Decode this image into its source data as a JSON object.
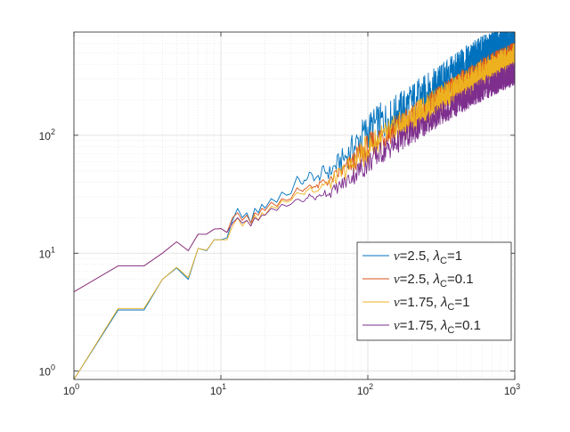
{
  "chart_data": {
    "type": "line",
    "title": "",
    "xlabel": "",
    "ylabel": "",
    "xscale": "log",
    "yscale": "log",
    "xlim": [
      1,
      1000
    ],
    "ylim": [
      0.85,
      750
    ],
    "grid": true,
    "legend_position": "lower-right",
    "x_ticks": [
      {
        "value": 1,
        "base": "10",
        "exp": "0"
      },
      {
        "value": 10,
        "base": "10",
        "exp": "1"
      },
      {
        "value": 100,
        "base": "10",
        "exp": "2"
      },
      {
        "value": 1000,
        "base": "10",
        "exp": "3"
      }
    ],
    "y_ticks": [
      {
        "value": 1,
        "base": "10",
        "exp": "0"
      },
      {
        "value": 10,
        "base": "10",
        "exp": "1"
      },
      {
        "value": 100,
        "base": "10",
        "exp": "2"
      }
    ],
    "legend": [
      {
        "nu": "2.5",
        "lambda": "1",
        "color": "#0072BD"
      },
      {
        "nu": "2.5",
        "lambda": "0.1",
        "color": "#D95319"
      },
      {
        "nu": "1.75",
        "lambda": "1",
        "color": "#EDB120"
      },
      {
        "nu": "1.75",
        "lambda": "0.1",
        "color": "#7E2F8E"
      }
    ],
    "legend_symbols": {
      "nu": "ν",
      "eq": "=",
      "sep": ", ",
      "lambda": "λ",
      "sub": "C"
    },
    "series": [
      {
        "color": "#0072BD",
        "points": [
          [
            1,
            0.85
          ],
          [
            2,
            3.3
          ],
          [
            3,
            3.3
          ],
          [
            4,
            6.0
          ],
          [
            5,
            7.5
          ],
          [
            6,
            6.0
          ],
          [
            7,
            11
          ],
          [
            8,
            10.5
          ],
          [
            9,
            13
          ],
          [
            10,
            13
          ],
          [
            11,
            13.5
          ],
          [
            12,
            19
          ],
          [
            13,
            24
          ],
          [
            14,
            20
          ],
          [
            15,
            22
          ],
          [
            16,
            18
          ],
          [
            17,
            24
          ],
          [
            18,
            22
          ],
          [
            19,
            26
          ],
          [
            20,
            24
          ],
          [
            22,
            29
          ],
          [
            24,
            27
          ],
          [
            26,
            33
          ],
          [
            28,
            31
          ],
          [
            30,
            32
          ],
          [
            33,
            45
          ],
          [
            36,
            38
          ],
          [
            40,
            47
          ],
          [
            45,
            42
          ],
          [
            50,
            50
          ],
          [
            55,
            48
          ],
          [
            60,
            55
          ],
          [
            70,
            65
          ],
          [
            80,
            78
          ],
          [
            90,
            95
          ],
          [
            100,
            110
          ],
          [
            120,
            130
          ],
          [
            140,
            135
          ],
          [
            160,
            160
          ],
          [
            180,
            175
          ],
          [
            200,
            195
          ],
          [
            250,
            230
          ],
          [
            300,
            270
          ],
          [
            350,
            310
          ],
          [
            400,
            350
          ],
          [
            500,
            420
          ],
          [
            600,
            480
          ],
          [
            700,
            530
          ],
          [
            800,
            590
          ],
          [
            900,
            630
          ],
          [
            1000,
            680
          ]
        ],
        "jitter": 0.16
      },
      {
        "color": "#D95319",
        "points": [
          [
            1,
            4.7
          ],
          [
            2,
            7.8
          ],
          [
            3,
            7.8
          ],
          [
            4,
            10
          ],
          [
            5,
            12.5
          ],
          [
            6,
            10.5
          ],
          [
            7,
            14.5
          ],
          [
            8,
            14.5
          ],
          [
            9,
            16
          ],
          [
            10,
            16.2
          ],
          [
            11,
            15
          ],
          [
            12,
            20
          ],
          [
            13,
            22
          ],
          [
            14,
            19
          ],
          [
            15,
            21
          ],
          [
            16,
            18
          ],
          [
            17,
            22
          ],
          [
            18,
            21
          ],
          [
            19,
            24
          ],
          [
            20,
            23
          ],
          [
            22,
            27
          ],
          [
            24,
            25
          ],
          [
            26,
            29
          ],
          [
            28,
            28
          ],
          [
            30,
            29
          ],
          [
            33,
            36
          ],
          [
            36,
            33
          ],
          [
            40,
            38
          ],
          [
            45,
            36
          ],
          [
            50,
            41
          ],
          [
            55,
            40
          ],
          [
            60,
            45
          ],
          [
            70,
            52
          ],
          [
            80,
            60
          ],
          [
            90,
            70
          ],
          [
            100,
            80
          ],
          [
            120,
            95
          ],
          [
            140,
            105
          ],
          [
            160,
            120
          ],
          [
            180,
            130
          ],
          [
            200,
            140
          ],
          [
            250,
            170
          ],
          [
            300,
            200
          ],
          [
            350,
            230
          ],
          [
            400,
            260
          ],
          [
            500,
            305
          ],
          [
            600,
            350
          ],
          [
            700,
            390
          ],
          [
            800,
            420
          ],
          [
            900,
            450
          ],
          [
            1000,
            480
          ]
        ],
        "jitter": 0.11
      },
      {
        "color": "#EDB120",
        "points": [
          [
            1,
            0.85
          ],
          [
            2,
            3.4
          ],
          [
            3,
            3.4
          ],
          [
            4,
            6.0
          ],
          [
            5,
            7.6
          ],
          [
            6,
            6.2
          ],
          [
            7,
            11
          ],
          [
            8,
            10.6
          ],
          [
            9,
            13
          ],
          [
            10,
            13
          ],
          [
            11,
            13
          ],
          [
            12,
            17
          ],
          [
            13,
            20
          ],
          [
            14,
            17
          ],
          [
            15,
            19
          ],
          [
            16,
            17
          ],
          [
            17,
            21
          ],
          [
            18,
            19
          ],
          [
            19,
            22
          ],
          [
            20,
            21
          ],
          [
            22,
            25
          ],
          [
            24,
            24
          ],
          [
            26,
            28
          ],
          [
            28,
            27
          ],
          [
            30,
            28
          ],
          [
            33,
            33
          ],
          [
            36,
            31
          ],
          [
            40,
            36
          ],
          [
            45,
            34
          ],
          [
            50,
            39
          ],
          [
            55,
            38
          ],
          [
            60,
            43
          ],
          [
            70,
            50
          ],
          [
            80,
            58
          ],
          [
            90,
            67
          ],
          [
            100,
            77
          ],
          [
            120,
            92
          ],
          [
            140,
            102
          ],
          [
            160,
            115
          ],
          [
            180,
            125
          ],
          [
            200,
            135
          ],
          [
            250,
            165
          ],
          [
            300,
            190
          ],
          [
            350,
            215
          ],
          [
            400,
            240
          ],
          [
            500,
            285
          ],
          [
            600,
            325
          ],
          [
            700,
            360
          ],
          [
            800,
            390
          ],
          [
            900,
            420
          ],
          [
            1000,
            450
          ]
        ],
        "jitter": 0.13
      },
      {
        "color": "#7E2F8E",
        "points": [
          [
            1,
            4.7
          ],
          [
            2,
            7.8
          ],
          [
            3,
            7.8
          ],
          [
            4,
            10
          ],
          [
            5,
            12.5
          ],
          [
            6,
            10.5
          ],
          [
            7,
            14.5
          ],
          [
            8,
            14.5
          ],
          [
            9,
            16
          ],
          [
            10,
            16.2
          ],
          [
            11,
            15
          ],
          [
            12,
            18
          ],
          [
            13,
            20
          ],
          [
            14,
            18
          ],
          [
            15,
            19
          ],
          [
            16,
            17
          ],
          [
            17,
            20
          ],
          [
            18,
            19
          ],
          [
            19,
            21
          ],
          [
            20,
            21
          ],
          [
            22,
            24
          ],
          [
            24,
            23
          ],
          [
            26,
            26
          ],
          [
            28,
            25
          ],
          [
            30,
            26
          ],
          [
            33,
            29
          ],
          [
            36,
            27
          ],
          [
            40,
            31
          ],
          [
            45,
            29
          ],
          [
            50,
            33
          ],
          [
            55,
            32
          ],
          [
            60,
            35
          ],
          [
            70,
            40
          ],
          [
            80,
            46
          ],
          [
            90,
            52
          ],
          [
            100,
            58
          ],
          [
            120,
            70
          ],
          [
            140,
            78
          ],
          [
            160,
            88
          ],
          [
            180,
            96
          ],
          [
            200,
            105
          ],
          [
            250,
            125
          ],
          [
            300,
            145
          ],
          [
            350,
            165
          ],
          [
            400,
            182
          ],
          [
            500,
            215
          ],
          [
            600,
            245
          ],
          [
            700,
            270
          ],
          [
            800,
            295
          ],
          [
            900,
            315
          ],
          [
            1000,
            340
          ]
        ],
        "jitter": 0.1
      }
    ]
  }
}
